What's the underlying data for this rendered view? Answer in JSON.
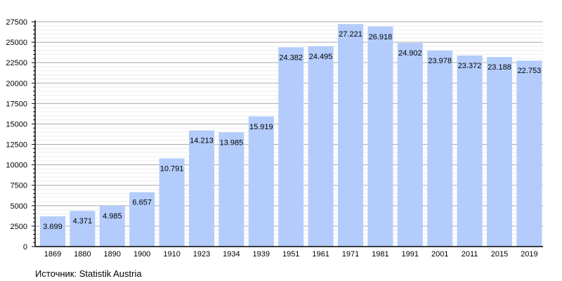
{
  "chart_data": {
    "type": "bar",
    "title": "",
    "xlabel": "",
    "ylabel": "",
    "categories": [
      "1869",
      "1880",
      "1890",
      "1900",
      "1910",
      "1923",
      "1934",
      "1939",
      "1951",
      "1961",
      "1971",
      "1981",
      "1991",
      "2001",
      "2011",
      "2015",
      "2019"
    ],
    "values": [
      3699,
      4371,
      4985,
      6657,
      10791,
      14213,
      13985,
      15919,
      24382,
      24495,
      27221,
      26918,
      24902,
      23978,
      23372,
      23188,
      22753
    ],
    "value_labels": [
      "3.699",
      "4.371",
      "4.985",
      "6.657",
      "10.791",
      "14.213",
      "13.985",
      "15.919",
      "24.382",
      "24.495",
      "27.221",
      "26.918",
      "24.902",
      "23.978",
      "23.372",
      "23.188",
      "22.753"
    ],
    "ylim": [
      0,
      27500
    ],
    "yticks": [
      0,
      2500,
      5000,
      7500,
      10000,
      12500,
      15000,
      17500,
      20000,
      22500,
      25000,
      27500
    ],
    "minor_step": 500,
    "grid": true,
    "bar_color": "#b3ccfb",
    "legend": "none"
  },
  "source": "Источник: Statistik Austria"
}
